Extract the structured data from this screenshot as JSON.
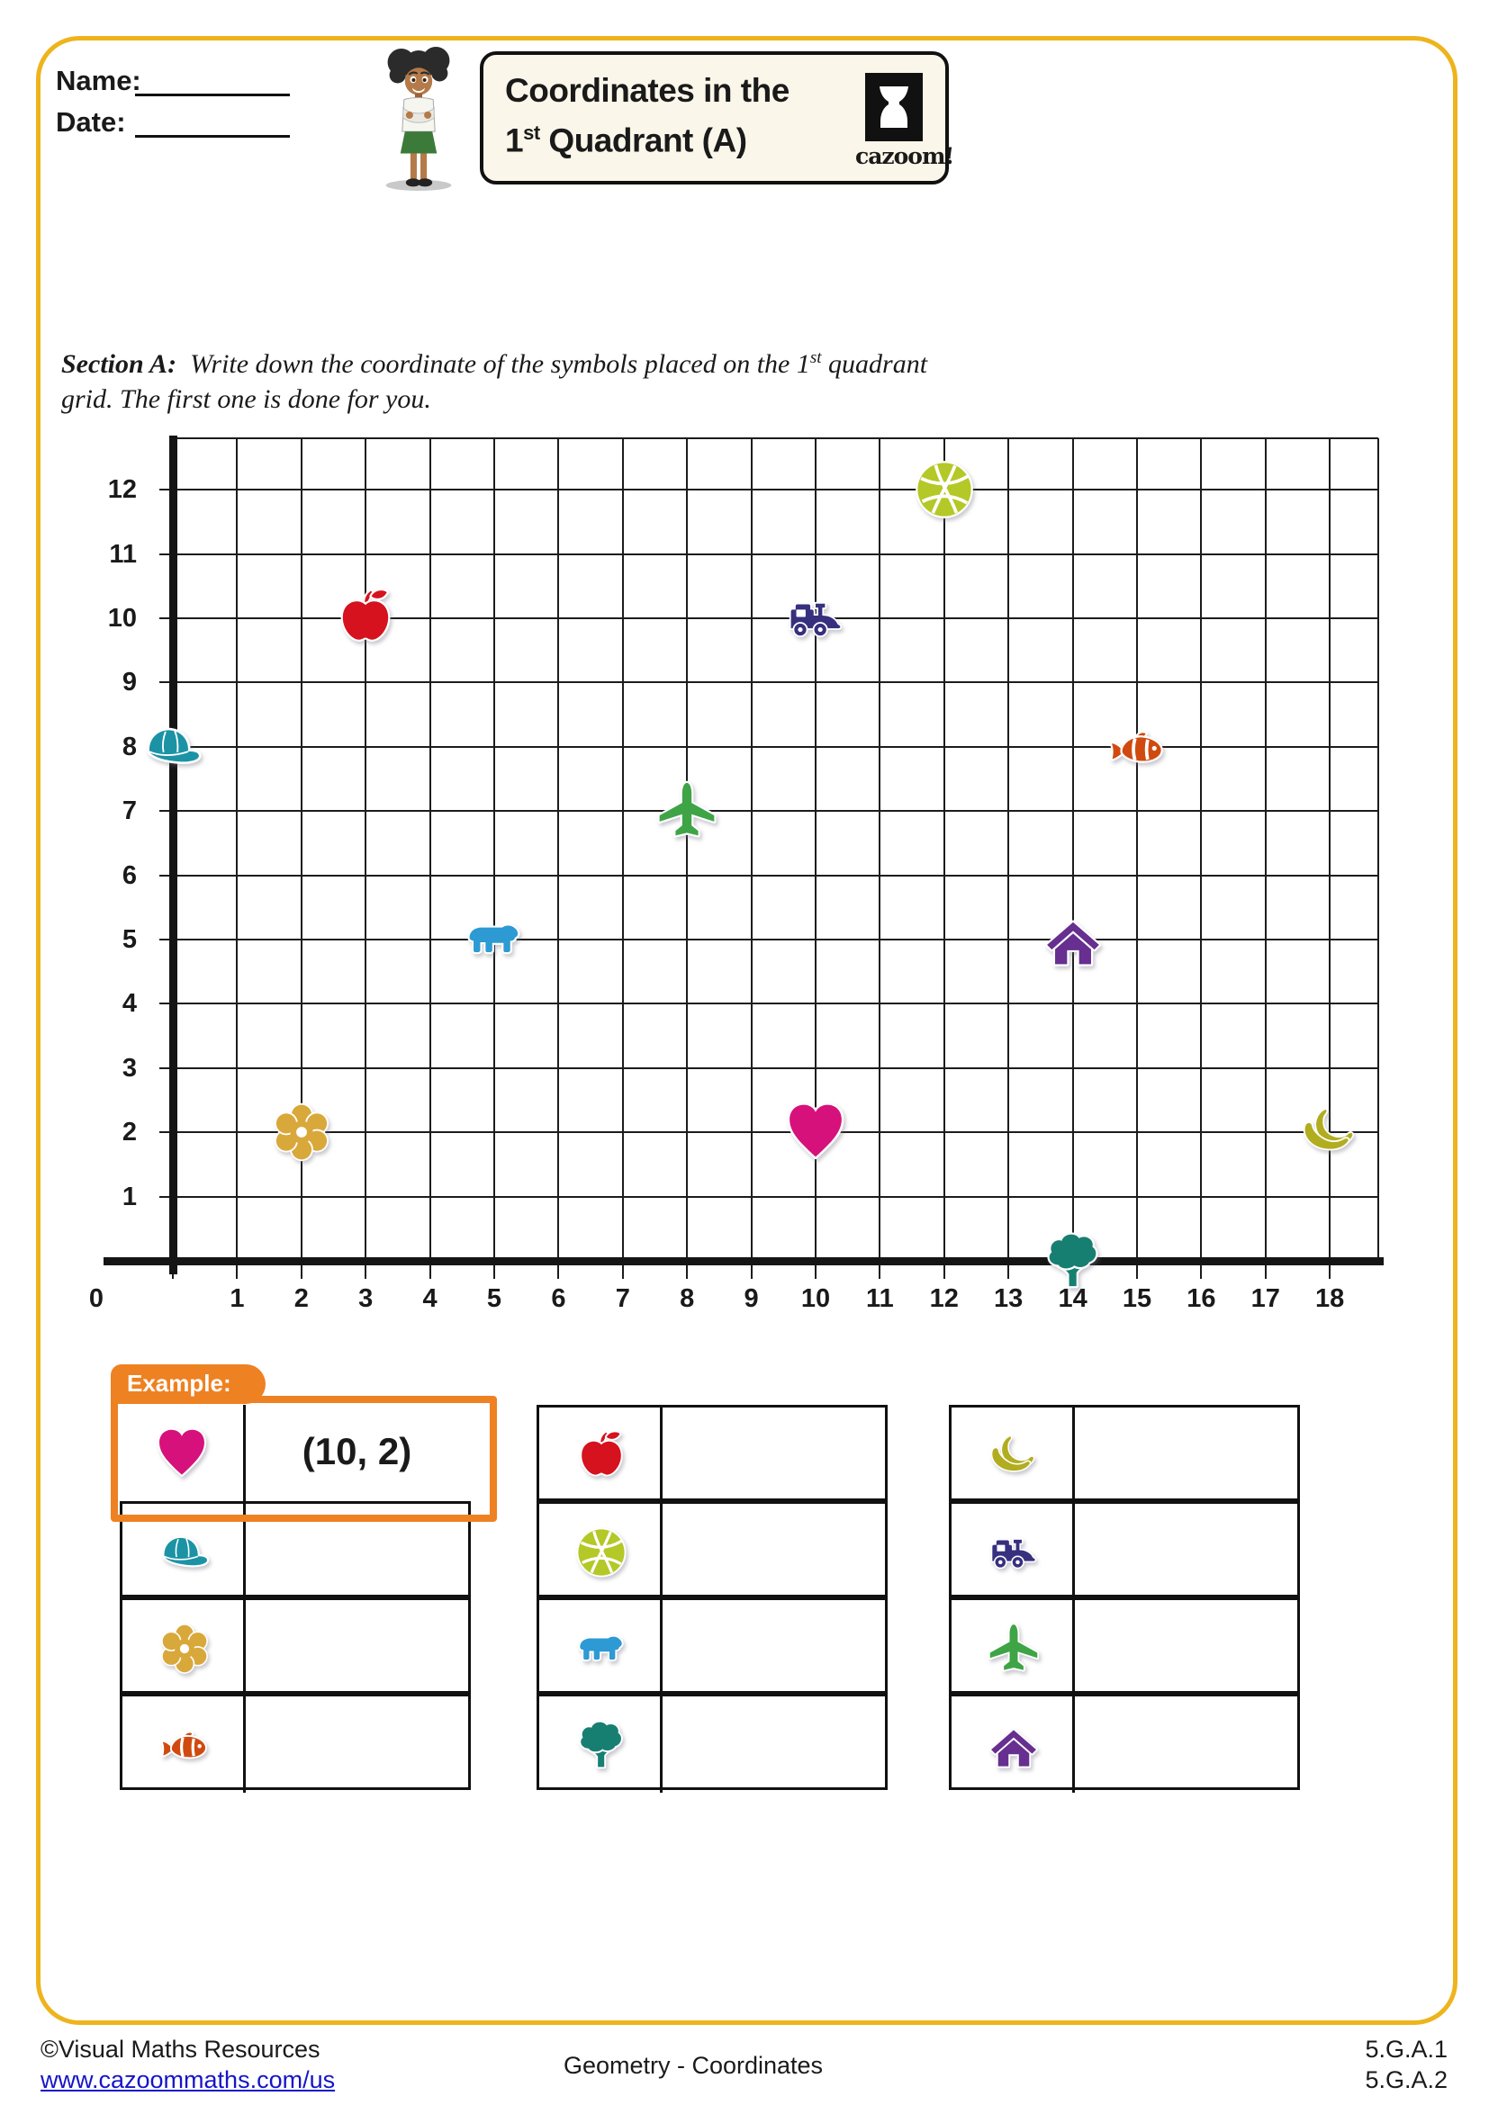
{
  "header": {
    "name_label": "Name:",
    "date_label": "Date:",
    "title_line1": "Coordinates in the",
    "title_line2": {
      "pre": "1",
      "sup": "st",
      "post": " Quadrant (A)"
    },
    "logo_text": "cazoom!"
  },
  "section": {
    "label": "Section A:",
    "text_pre": "Write down the coordinate of the symbols placed on the 1",
    "text_sup": "st",
    "text_post": " quadrant grid. The first one is done for you."
  },
  "grid": {
    "x_labels": [
      "0",
      "1",
      "2",
      "3",
      "4",
      "5",
      "6",
      "7",
      "8",
      "9",
      "10",
      "11",
      "12",
      "13",
      "14",
      "15",
      "16",
      "17",
      "18"
    ],
    "y_labels": [
      "1",
      "2",
      "3",
      "4",
      "5",
      "6",
      "7",
      "8",
      "9",
      "10",
      "11",
      "12"
    ],
    "points": [
      {
        "icon": "cap",
        "x": 0,
        "y": 8
      },
      {
        "icon": "apple",
        "x": 3,
        "y": 10
      },
      {
        "icon": "flower",
        "x": 2,
        "y": 2
      },
      {
        "icon": "bear",
        "x": 5,
        "y": 5
      },
      {
        "icon": "airplane",
        "x": 8,
        "y": 7
      },
      {
        "icon": "train",
        "x": 10,
        "y": 10
      },
      {
        "icon": "heart",
        "x": 10,
        "y": 2
      },
      {
        "icon": "basketball",
        "x": 12,
        "y": 12
      },
      {
        "icon": "house",
        "x": 14,
        "y": 5
      },
      {
        "icon": "tree",
        "x": 14,
        "y": 0
      },
      {
        "icon": "clownfish",
        "x": 15,
        "y": 8
      },
      {
        "icon": "banana",
        "x": 18,
        "y": 2
      }
    ]
  },
  "example": {
    "tab_label": "Example:"
  },
  "tables": [
    {
      "rows": [
        {
          "icon": "heart",
          "answer": "(10, 2)",
          "is_example": true
        },
        {
          "icon": "cap",
          "answer": ""
        },
        {
          "icon": "flower",
          "answer": ""
        },
        {
          "icon": "clownfish",
          "answer": ""
        }
      ]
    },
    {
      "rows": [
        {
          "icon": "apple",
          "answer": ""
        },
        {
          "icon": "basketball",
          "answer": ""
        },
        {
          "icon": "bear",
          "answer": ""
        },
        {
          "icon": "tree",
          "answer": ""
        }
      ]
    },
    {
      "rows": [
        {
          "icon": "banana",
          "answer": ""
        },
        {
          "icon": "train",
          "answer": ""
        },
        {
          "icon": "airplane",
          "answer": ""
        },
        {
          "icon": "house",
          "answer": ""
        }
      ]
    }
  ],
  "footer": {
    "copyright": "©Visual Maths Resources",
    "url": "www.cazoommaths.com/us",
    "center_text": "Geometry - Coordinates",
    "standards": [
      "5.G.A.1",
      "5.G.A.2"
    ]
  },
  "colors": {
    "page_border": "#eeb41d",
    "example_orange": "#ee8122",
    "heart": "#d6117b",
    "cap": "#1b93a5",
    "flower": "#d9a83b",
    "clownfish": "#d04a10",
    "apple": "#d5121e",
    "basketball": "#b4c827",
    "bear": "#2d9ad3",
    "tree": "#177f72",
    "banana": "#b1ad1f",
    "train": "#37307f",
    "airplane": "#3ea446",
    "house": "#662f90"
  }
}
